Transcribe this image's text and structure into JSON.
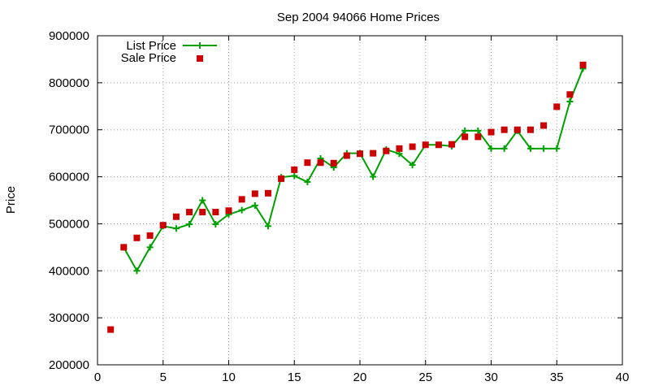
{
  "chart_data": {
    "type": "line",
    "title": "Sep 2004 94066 Home Prices",
    "xlabel": "",
    "ylabel": "Price",
    "xlim": [
      0,
      40
    ],
    "ylim": [
      200000,
      900000
    ],
    "xticks": [
      0,
      5,
      10,
      15,
      20,
      25,
      30,
      35,
      40
    ],
    "yticks": [
      200000,
      300000,
      400000,
      500000,
      600000,
      700000,
      800000,
      900000
    ],
    "grid": true,
    "legend_position": "top-left",
    "series": [
      {
        "name": "List Price",
        "style": "line-plus",
        "color": "#00a000",
        "x": [
          2,
          3,
          4,
          5,
          6,
          7,
          8,
          9,
          10,
          11,
          12,
          13,
          14,
          15,
          16,
          17,
          18,
          19,
          20,
          21,
          22,
          23,
          24,
          25,
          26,
          27,
          28,
          29,
          30,
          31,
          32,
          33,
          34,
          35,
          36,
          37
        ],
        "y": [
          450000,
          400000,
          450000,
          495000,
          490000,
          499000,
          550000,
          499000,
          520000,
          529000,
          539000,
          495000,
          599000,
          602000,
          589000,
          639000,
          620000,
          650000,
          650000,
          600000,
          658000,
          649000,
          625000,
          668000,
          668000,
          665000,
          698000,
          698000,
          660000,
          660000,
          698000,
          660000,
          660000,
          660000,
          760000,
          830000
        ]
      },
      {
        "name": "Sale Price",
        "style": "square-markers",
        "color": "#cc0000",
        "x": [
          1,
          2,
          3,
          4,
          5,
          6,
          7,
          8,
          9,
          10,
          11,
          12,
          13,
          14,
          15,
          16,
          17,
          18,
          19,
          20,
          21,
          22,
          23,
          24,
          25,
          26,
          27,
          28,
          29,
          30,
          31,
          32,
          33,
          34,
          35,
          36,
          37
        ],
        "y": [
          275000,
          450000,
          470000,
          475000,
          497000,
          515000,
          525000,
          525000,
          525000,
          528000,
          552000,
          564000,
          565000,
          596000,
          615000,
          630000,
          630000,
          629000,
          645000,
          649000,
          650000,
          655000,
          660000,
          664000,
          668000,
          668000,
          669000,
          685000,
          685000,
          695000,
          700000,
          700000,
          700000,
          709000,
          749000,
          775000,
          838000
        ]
      }
    ]
  }
}
